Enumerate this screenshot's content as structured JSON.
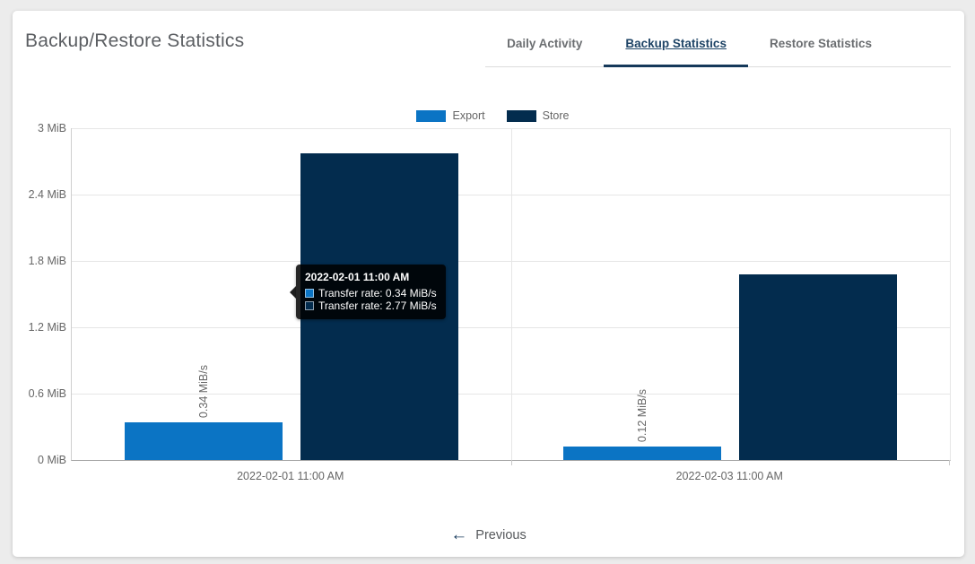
{
  "page": {
    "title": "Backup/Restore Statistics"
  },
  "tabs": [
    {
      "label": "Daily Activity",
      "active": false
    },
    {
      "label": "Backup Statistics",
      "active": true
    },
    {
      "label": "Restore Statistics",
      "active": false
    }
  ],
  "legend": [
    {
      "label": "Export",
      "color": "#0b74c4"
    },
    {
      "label": "Store",
      "color": "#032c4e"
    }
  ],
  "chart_data": {
    "type": "bar",
    "title": "",
    "categories": [
      "2022-02-01 11:00 AM",
      "2022-02-03 11:00 AM"
    ],
    "series": [
      {
        "name": "Export",
        "color": "#0b74c4",
        "values": [
          0.34,
          0.12
        ],
        "point_labels": [
          "0.34 MiB/s",
          "0.12 MiB/s"
        ]
      },
      {
        "name": "Store",
        "color": "#032c4e",
        "values": [
          2.77,
          1.68
        ]
      }
    ],
    "yticks": [
      "3 MiB",
      "2.4 MiB",
      "1.8 MiB",
      "1.2 MiB",
      "0.6 MiB",
      "0 MiB"
    ],
    "ylim": [
      0,
      3
    ],
    "ylabel": "",
    "unit": "MiB/s",
    "grid": true,
    "legend_position": "top"
  },
  "tooltip": {
    "title": "2022-02-01 11:00 AM",
    "rows": [
      {
        "label": "Transfer rate: 0.34 MiB/s",
        "color": "#0b74c4"
      },
      {
        "label": "Transfer rate: 2.77 MiB/s",
        "color": "#032c4e"
      }
    ]
  },
  "pagination": {
    "previous_label": "Previous",
    "arrow_glyph": "←"
  },
  "colors": {
    "accent_navy": "#15395a",
    "export_blue": "#0b74c4",
    "store_navy": "#032c4e"
  }
}
